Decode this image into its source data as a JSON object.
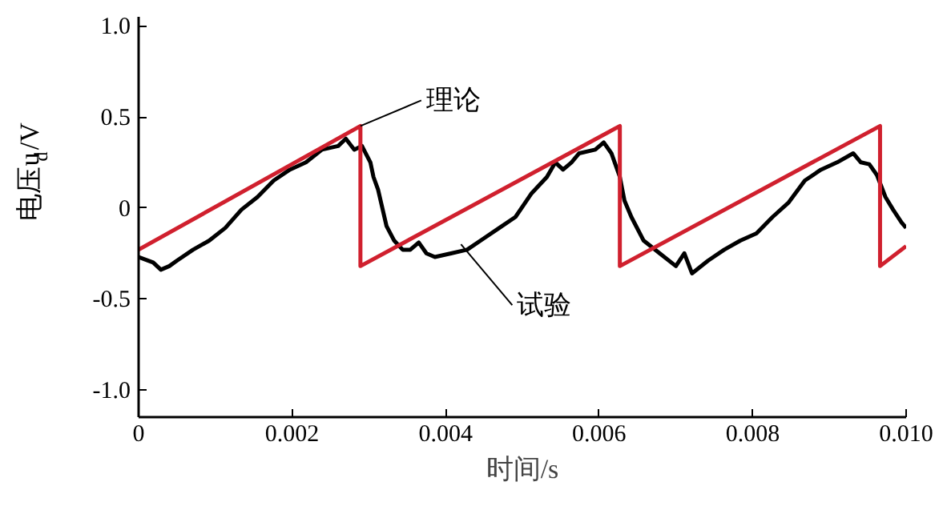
{
  "chart_data": {
    "type": "line",
    "xlabel": "时间/s",
    "ylabel": "电压u$_{d}$/V",
    "xlim": [
      0,
      0.01
    ],
    "ylim": [
      -1.15,
      1.05
    ],
    "xticks": [
      0,
      0.002,
      0.004,
      0.006,
      0.008,
      {
        "value": 0.01,
        "label": "0.010"
      }
    ],
    "yticks": [
      {
        "value": -1.0,
        "label": "-1.0"
      },
      -0.5,
      0,
      0.5,
      {
        "value": 1.0,
        "label": "1.0"
      }
    ],
    "grid": false,
    "marker": "none",
    "line_style": "solid",
    "series": [
      {
        "color": "#000000",
        "x": [
          0,
          0.00019,
          0.00029,
          0.0004,
          0.0005,
          0.00071,
          0.00092,
          0.00113,
          0.00134,
          0.00155,
          0.00176,
          0.00197,
          0.00218,
          0.00239,
          0.0026,
          0.0027,
          0.00281,
          0.00291,
          0.00302,
          0.00306,
          0.00312,
          0.00323,
          0.00333,
          0.00344,
          0.00354,
          0.00365,
          0.00375,
          0.00386,
          0.00407,
          0.00428,
          0.00449,
          0.0047,
          0.00491,
          0.00512,
          0.00532,
          0.00543,
          0.00553,
          0.00564,
          0.00574,
          0.00595,
          0.00606,
          0.00616,
          0.00627,
          0.00633,
          0.00642,
          0.00658,
          0.00679,
          0.007,
          0.00711,
          0.00721,
          0.00742,
          0.00763,
          0.00784,
          0.00805,
          0.00826,
          0.00847,
          0.00868,
          0.00889,
          0.0091,
          0.00931,
          0.00941,
          0.00952,
          0.00962,
          0.00973,
          0.00983,
          0.00994,
          0.01
        ],
        "values": [
          -0.27,
          -0.3,
          -0.34,
          -0.32,
          -0.29,
          -0.23,
          -0.18,
          -0.11,
          -0.01,
          0.06,
          0.15,
          0.21,
          0.25,
          0.32,
          0.34,
          0.38,
          0.32,
          0.34,
          0.25,
          0.17,
          0.1,
          -0.1,
          -0.18,
          -0.23,
          -0.23,
          -0.19,
          -0.25,
          -0.27,
          -0.25,
          -0.23,
          -0.17,
          -0.11,
          -0.05,
          0.08,
          0.17,
          0.25,
          0.21,
          0.25,
          0.3,
          0.32,
          0.36,
          0.3,
          0.17,
          0.04,
          -0.05,
          -0.18,
          -0.25,
          -0.32,
          -0.25,
          -0.36,
          -0.29,
          -0.23,
          -0.18,
          -0.14,
          -0.05,
          0.03,
          0.15,
          0.21,
          0.25,
          0.3,
          0.25,
          0.24,
          0.18,
          0.06,
          -0.01,
          -0.08,
          -0.11
        ]
      },
      {
        "color": "#d0202e",
        "x": [
          0,
          0.00289,
          0.00289,
          0.00627,
          0.00627,
          0.00966,
          0.00966,
          0.01
        ],
        "values": [
          -0.23,
          0.45,
          -0.32,
          0.45,
          -0.32,
          0.45,
          -0.32,
          -0.21
        ]
      }
    ],
    "annotations": [
      {
        "text": "理论",
        "x": 0.00289,
        "y": 0.45
      },
      {
        "text": "试验",
        "x": 0.0042,
        "y": -0.2
      }
    ]
  }
}
